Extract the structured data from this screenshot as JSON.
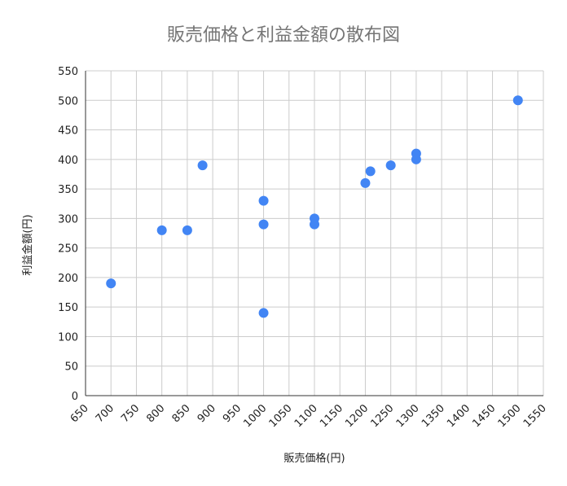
{
  "chart_data": {
    "type": "scatter",
    "title": "販売価格と利益金額の散布図",
    "xlabel": "販売価格(円)",
    "ylabel": "利益金額(円)",
    "xlim": [
      650,
      1550
    ],
    "ylim": [
      0,
      550
    ],
    "x_ticks": [
      650,
      700,
      750,
      800,
      850,
      900,
      950,
      1000,
      1050,
      1100,
      1150,
      1200,
      1250,
      1300,
      1350,
      1400,
      1450,
      1500,
      1550
    ],
    "y_ticks": [
      0,
      50,
      100,
      150,
      200,
      250,
      300,
      350,
      400,
      450,
      500,
      550
    ],
    "grid": true,
    "point_color": "#4285F4",
    "points": [
      {
        "x": 700,
        "y": 190
      },
      {
        "x": 800,
        "y": 280
      },
      {
        "x": 850,
        "y": 280
      },
      {
        "x": 880,
        "y": 390
      },
      {
        "x": 1000,
        "y": 330
      },
      {
        "x": 1000,
        "y": 290
      },
      {
        "x": 1000,
        "y": 140
      },
      {
        "x": 1100,
        "y": 300
      },
      {
        "x": 1100,
        "y": 290
      },
      {
        "x": 1200,
        "y": 360
      },
      {
        "x": 1210,
        "y": 380
      },
      {
        "x": 1250,
        "y": 390
      },
      {
        "x": 1300,
        "y": 410
      },
      {
        "x": 1300,
        "y": 400
      },
      {
        "x": 1500,
        "y": 500
      }
    ]
  }
}
